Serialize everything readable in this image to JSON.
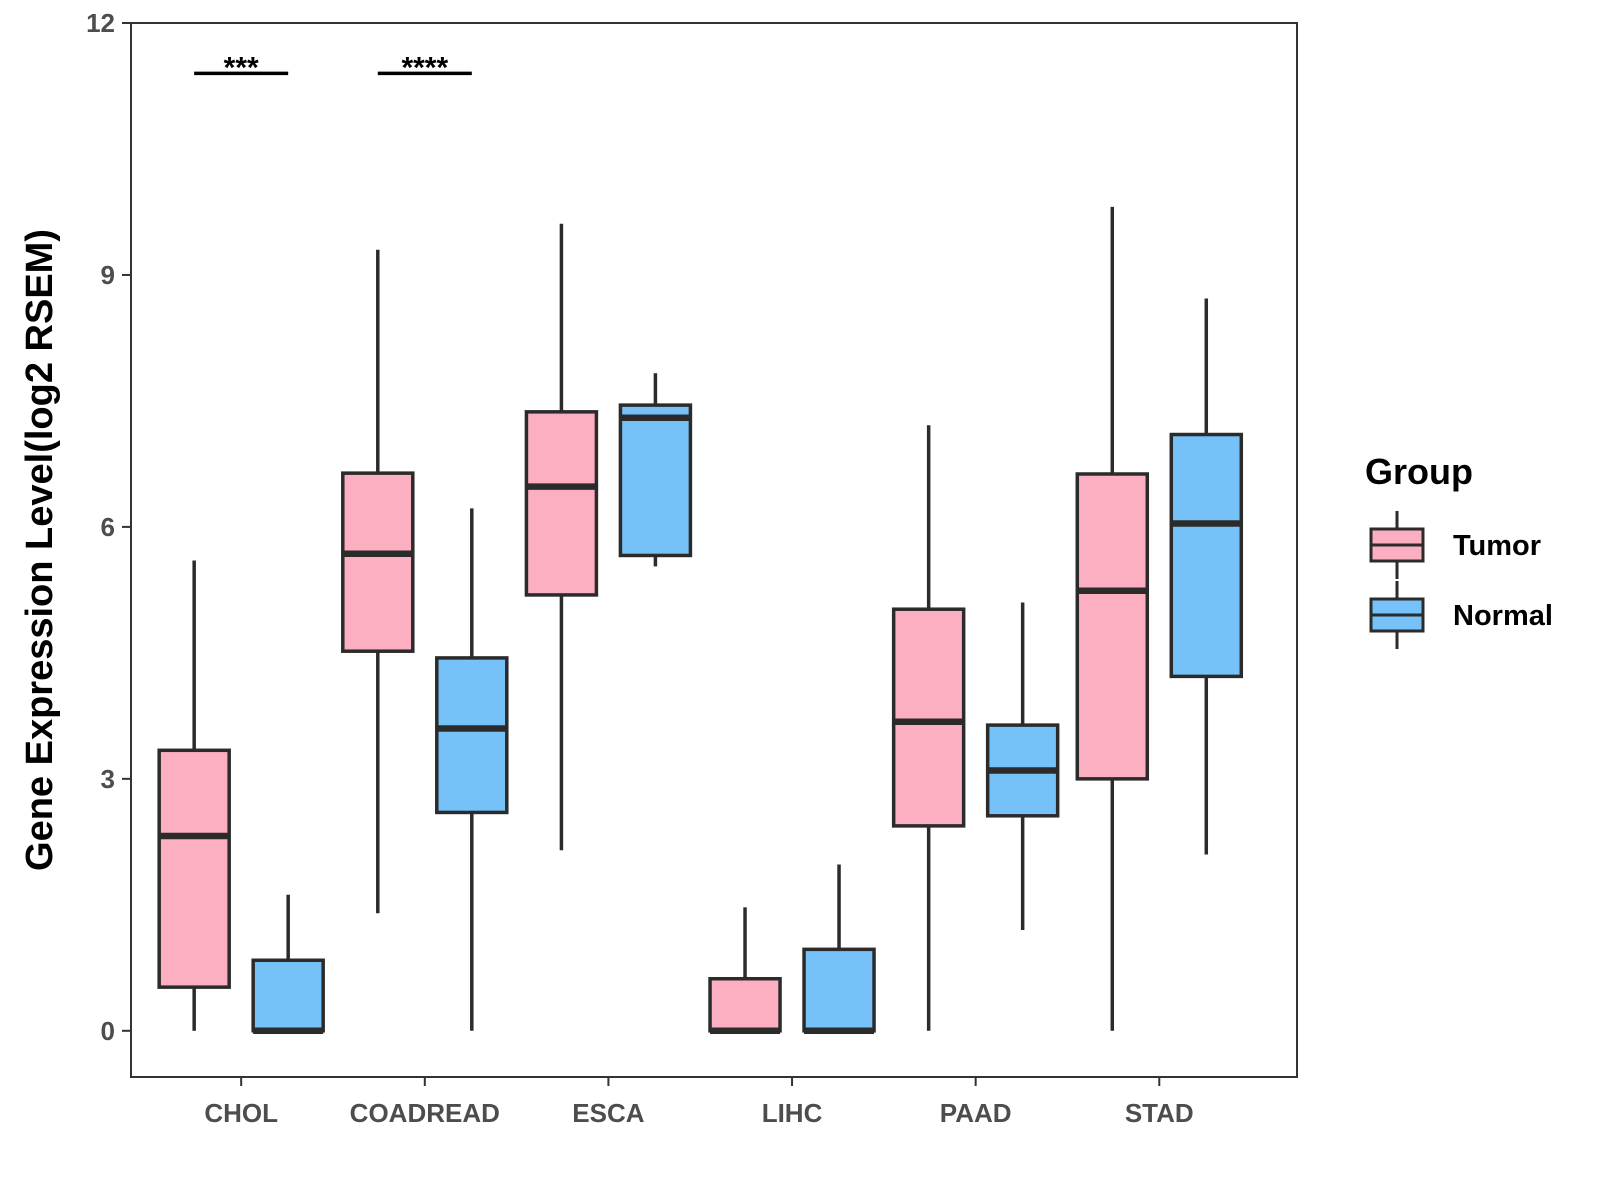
{
  "chart_data": {
    "type": "boxplot",
    "title": "",
    "xlabel": "",
    "ylabel": "Gene Expression Level(log2 RSEM)",
    "ylim": [
      -0.55,
      12
    ],
    "yticks": [
      0,
      3,
      6,
      9,
      12
    ],
    "grid": false,
    "legend_position": "right",
    "legend": {
      "title": "Group",
      "entries": [
        {
          "name": "Tumor",
          "color": "#fbafc0"
        },
        {
          "name": "Normal",
          "color": "#75c1f8"
        }
      ]
    },
    "categories": [
      "CHOL",
      "COADREAD",
      "ESCA",
      "LIHC",
      "PAAD",
      "STAD"
    ],
    "series": [
      {
        "name": "Tumor",
        "color": "#fbafc0",
        "boxes": [
          {
            "min": 0.0,
            "q1": 0.52,
            "median": 2.32,
            "q3": 3.34,
            "max": 5.6
          },
          {
            "min": 1.4,
            "q1": 4.52,
            "median": 5.68,
            "q3": 6.64,
            "max": 9.3
          },
          {
            "min": 2.15,
            "q1": 5.19,
            "median": 6.48,
            "q3": 7.37,
            "max": 9.61
          },
          {
            "min": 0.0,
            "q1": 0.0,
            "median": 0.0,
            "q3": 0.62,
            "max": 1.47
          },
          {
            "min": 0.0,
            "q1": 2.44,
            "median": 3.68,
            "q3": 5.02,
            "max": 7.21
          },
          {
            "min": 0.0,
            "q1": 3.0,
            "median": 5.24,
            "q3": 6.63,
            "max": 9.81
          }
        ]
      },
      {
        "name": "Normal",
        "color": "#75c1f8",
        "boxes": [
          {
            "min": 0.0,
            "q1": 0.0,
            "median": 0.0,
            "q3": 0.84,
            "max": 1.62
          },
          {
            "min": 0.0,
            "q1": 2.6,
            "median": 3.6,
            "q3": 4.44,
            "max": 6.22
          },
          {
            "min": 5.53,
            "q1": 5.66,
            "median": 7.3,
            "q3": 7.45,
            "max": 7.83
          },
          {
            "min": 0.0,
            "q1": 0.0,
            "median": 0.0,
            "q3": 0.97,
            "max": 1.98
          },
          {
            "min": 1.2,
            "q1": 2.56,
            "median": 3.1,
            "q3": 3.64,
            "max": 5.1
          },
          {
            "min": 2.1,
            "q1": 4.22,
            "median": 6.04,
            "q3": 7.1,
            "max": 8.72
          }
        ]
      }
    ],
    "annotations": [
      {
        "category": "CHOL",
        "label": "***",
        "y": 11.4
      },
      {
        "category": "COADREAD",
        "label": "****",
        "y": 11.4
      }
    ]
  }
}
